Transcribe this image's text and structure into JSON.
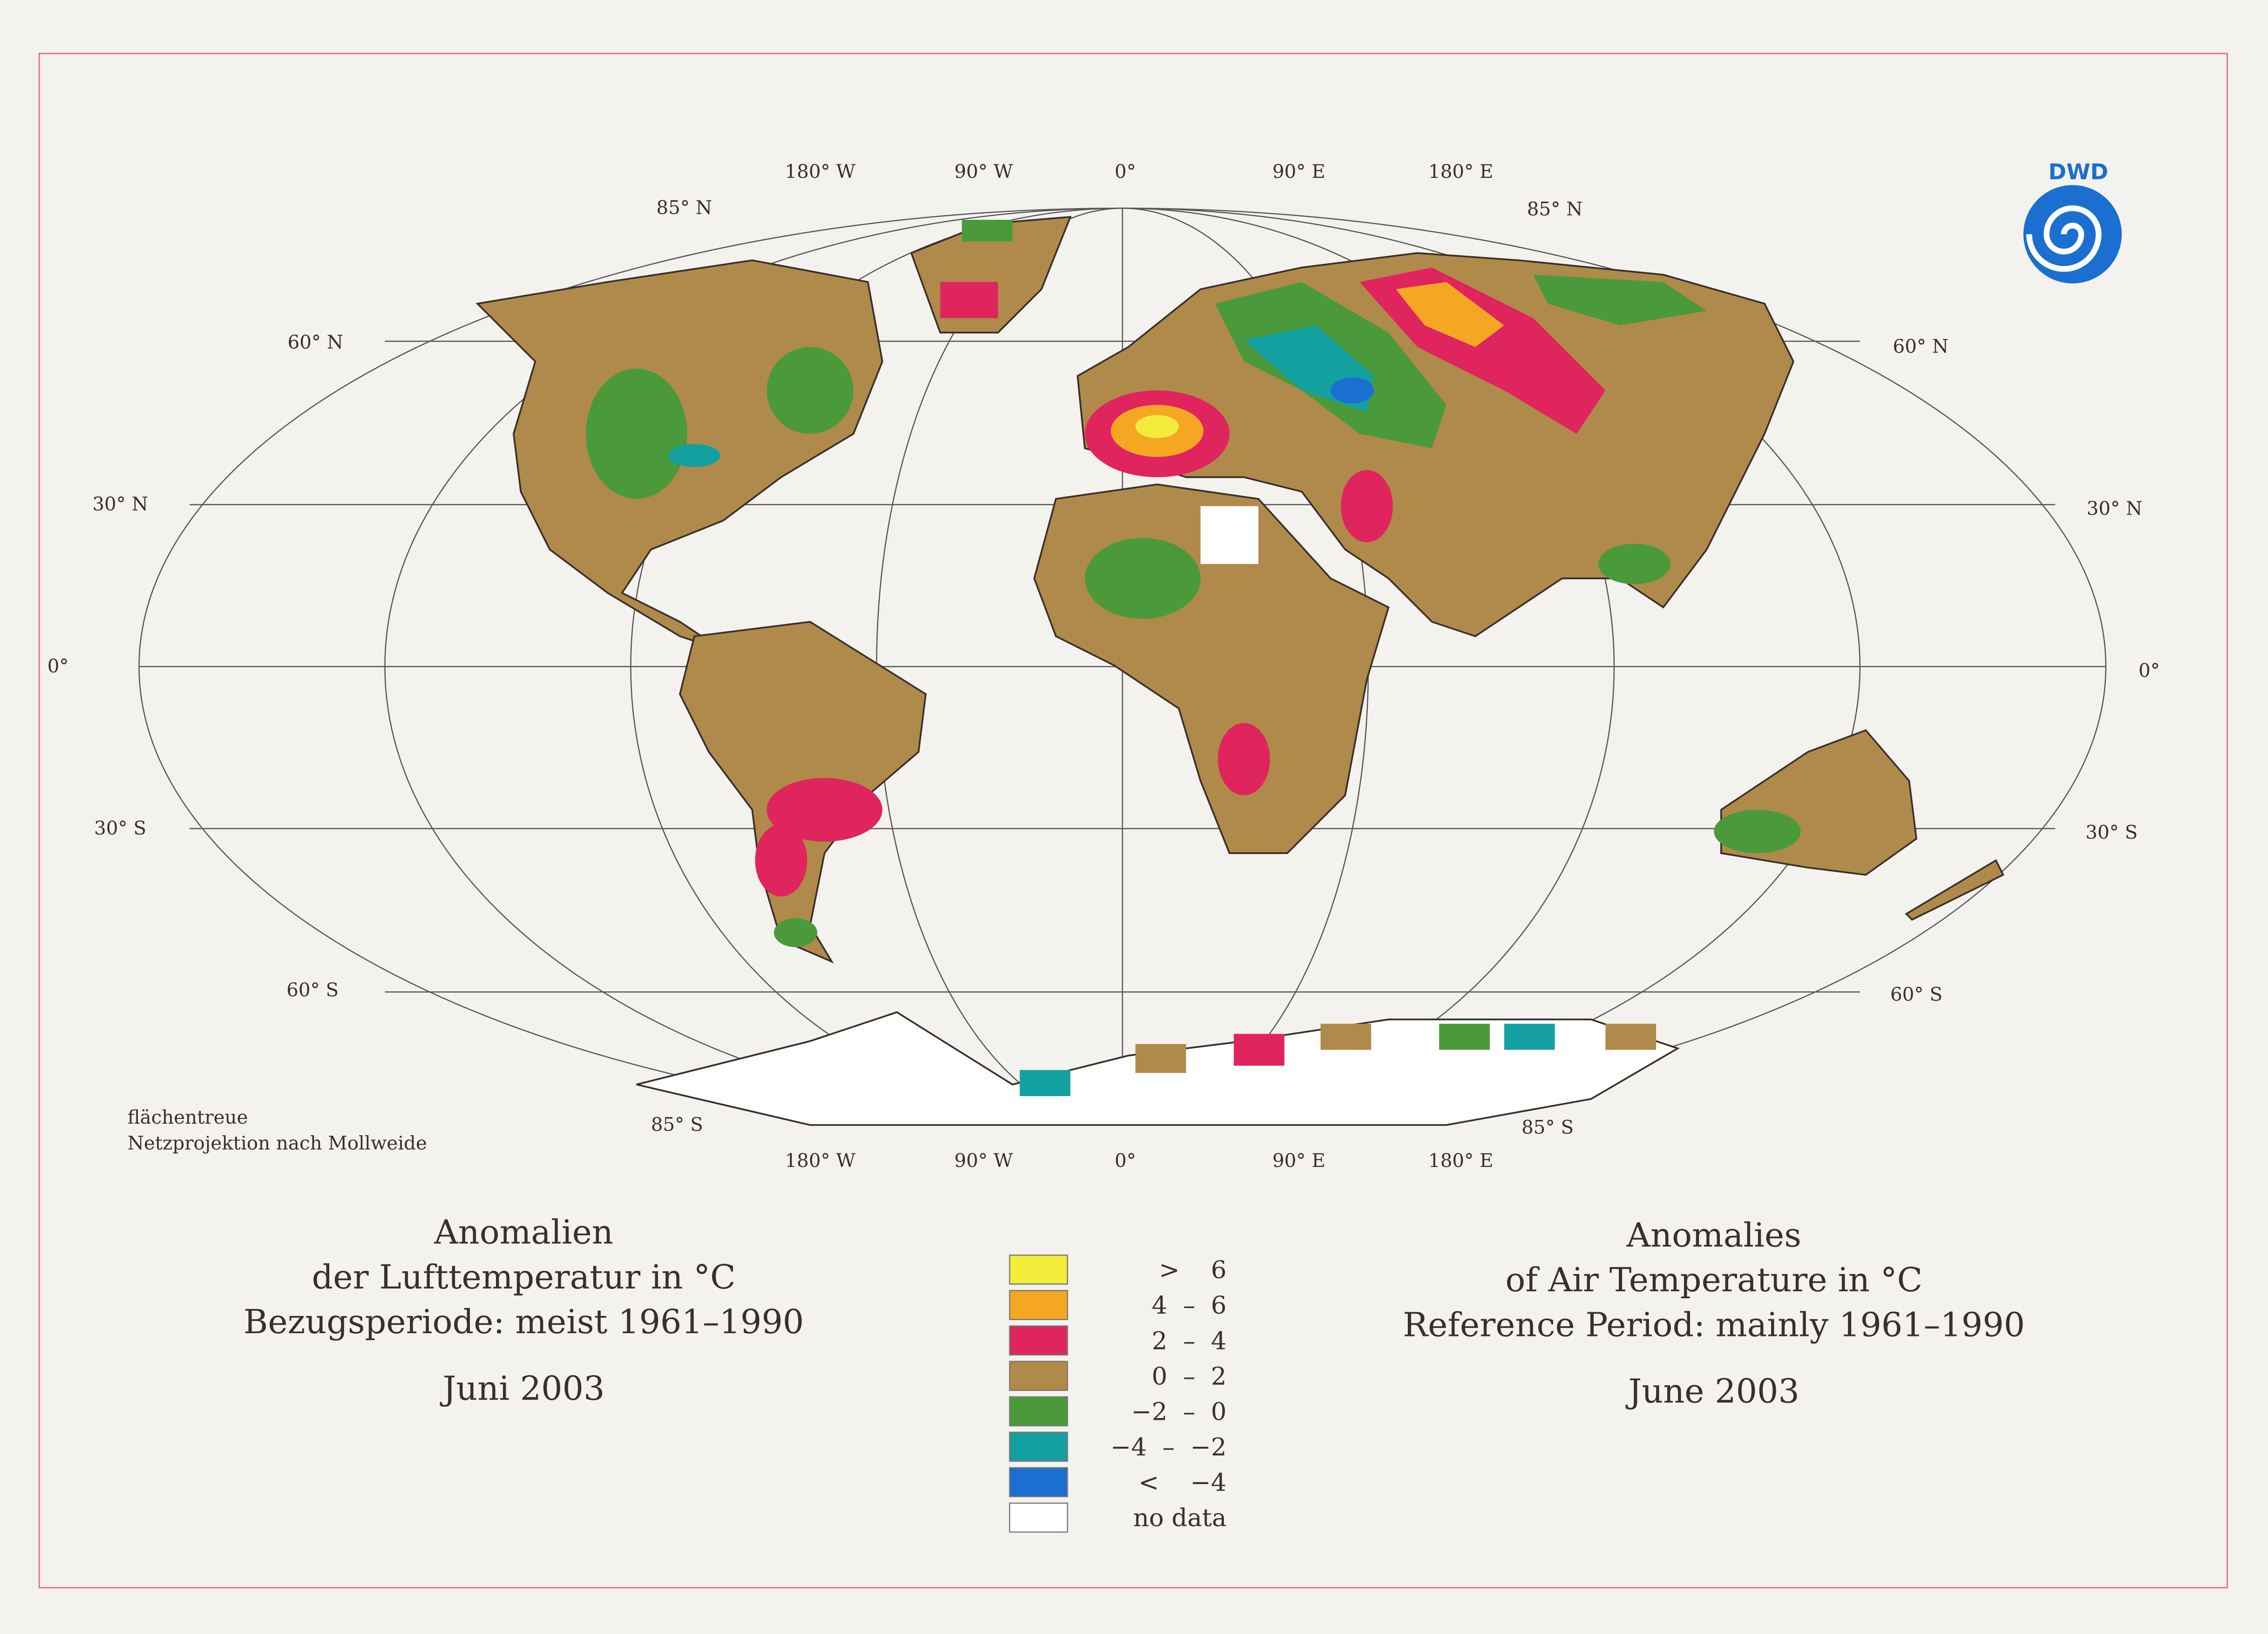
{
  "logo": "DWD",
  "map": {
    "top_longitudes": [
      "180° W",
      "90° W",
      "0°",
      "90° E",
      "180° E"
    ],
    "bottom_longitudes": [
      "180° W",
      "90° W",
      "0°",
      "90° E",
      "180° E"
    ],
    "latitudes_left": [
      "85° N",
      "60° N",
      "30° N",
      "0°",
      "30° S",
      "60° S",
      "85° S"
    ],
    "latitudes_right": [
      "85° N",
      "60° N",
      "30° N",
      "0°",
      "30° S",
      "60° S",
      "85° S"
    ],
    "projection_note": [
      "flächentreue",
      "Netzprojektion nach Mollweide"
    ]
  },
  "title_de": [
    "Anomalien",
    "der Lufttemperatur in °C",
    "Bezugsperiode: meist 1961–1990",
    "Juni 2003"
  ],
  "title_en": [
    "Anomalies",
    "of Air Temperature in °C",
    "Reference Period: mainly 1961–1990",
    "June 2003"
  ],
  "legend": [
    {
      "label": ">    6",
      "color": "#f2ec3a"
    },
    {
      "label": "4  –  6",
      "color": "#f5a623"
    },
    {
      "label": "2  –  4",
      "color": "#e0245e"
    },
    {
      "label": "0  –  2",
      "color": "#b08a4a"
    },
    {
      "label": "−2  –  0",
      "color": "#4a9a3c"
    },
    {
      "label": "−4  –  −2",
      "color": "#14a0a0"
    },
    {
      "label": "<    −4",
      "color": "#1a6fd0"
    },
    {
      "label": "no data",
      "color": "#ffffff"
    }
  ]
}
